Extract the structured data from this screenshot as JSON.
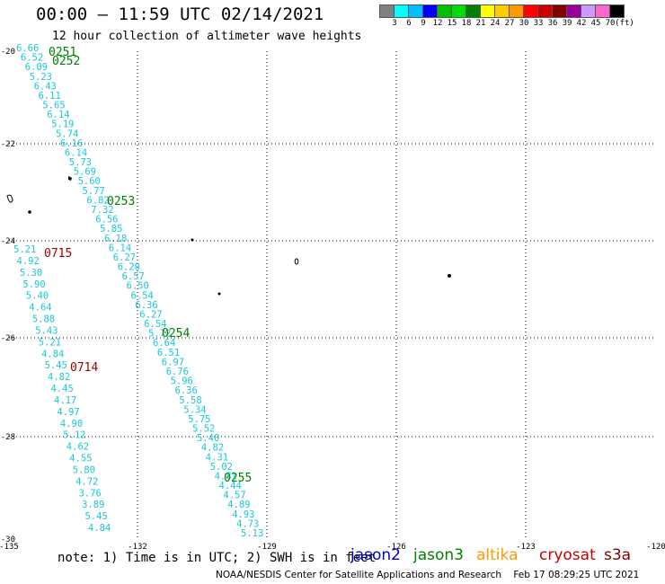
{
  "header": {
    "title": "00:00 – 11:59 UTC 02/14/2021",
    "subtitle": "12 hour collection of altimeter wave heights"
  },
  "colorbar": {
    "colors": [
      "#808080",
      "#00ffff",
      "#00bfff",
      "#0000ff",
      "#00c000",
      "#00e000",
      "#008000",
      "#ffff00",
      "#ffcc00",
      "#ff9900",
      "#ff0000",
      "#cc0000",
      "#800000",
      "#990099",
      "#cc99ff",
      "#ff66cc",
      "#000000"
    ],
    "labels": [
      "3",
      "6",
      "9",
      "12",
      "15",
      "18",
      "21",
      "24",
      "27",
      "30",
      "33",
      "36",
      "39",
      "42",
      "45",
      "70",
      "(ft)"
    ]
  },
  "axes": {
    "lon_labels": [
      "-135",
      "-132",
      "-129",
      "-126",
      "-123",
      "-120"
    ],
    "lat_labels": [
      "-20",
      "-22",
      "-24",
      "-26",
      "-28",
      "-30"
    ]
  },
  "passes": [
    {
      "label": "0251",
      "color": "#008000"
    },
    {
      "label": "0252",
      "color": "#008000"
    },
    {
      "label": "0253",
      "color": "#008000"
    },
    {
      "label": "0254",
      "color": "#008000"
    },
    {
      "label": "0255",
      "color": "#008000"
    },
    {
      "label": "0715",
      "color": "#990000"
    },
    {
      "label": "0714",
      "color": "#990000"
    }
  ],
  "tracks": [
    {
      "color": "#19c6da",
      "values": [
        "6.66",
        "6.52",
        "6.09",
        "5.23",
        "6.43",
        "6.11",
        "5.65",
        "6.14",
        "5.19",
        "5.74",
        "6.16",
        "6.14",
        "5.73",
        "5.69",
        "5.60",
        "5.77",
        "6.82",
        "7.32",
        "6.56",
        "5.85",
        "6.18",
        "6.14",
        "6.27",
        "6.20",
        "6.57",
        "6.50",
        "6.54",
        "6.36",
        "6.27",
        "6.54",
        "5.72",
        "6.64",
        "6.51",
        "6.97",
        "6.76",
        "5.96",
        "6.36",
        "5.58",
        "5.34",
        "5.75",
        "5.52",
        "5.40",
        "4.82",
        "4.31",
        "5.02",
        "4.81",
        "4.44",
        "4.57",
        "4.89",
        "4.93",
        "4.73",
        "5.13"
      ]
    },
    {
      "color": "#19c6da",
      "values": [
        "5.21",
        "4.92",
        "5.30",
        "5.90",
        "5.40",
        "4.64",
        "5.88",
        "5.43",
        "5.21",
        "4.84",
        "5.45",
        "4.82",
        "4.45",
        "4.17",
        "4.97",
        "4.90",
        "5.12",
        "4.62",
        "4.55",
        "5.80",
        "4.72",
        "3.76",
        "3.89",
        "5.45",
        "4.84"
      ]
    }
  ],
  "footer": {
    "note": "note: 1) Time is in UTC; 2) SWH is in feet",
    "legend": [
      {
        "name": "jason2",
        "color": "#0000cc"
      },
      {
        "name": "jason3",
        "color": "#008000"
      },
      {
        "name": "altika",
        "color": "#ff9900"
      },
      {
        "name": "cryosat",
        "color": "#cc0000"
      },
      {
        "name": "s3a",
        "color": "#800000"
      }
    ],
    "credit": "NOAA/NESDIS Center for Satellite Applications and Research    Feb 17 08:29:25 UTC 2021"
  }
}
